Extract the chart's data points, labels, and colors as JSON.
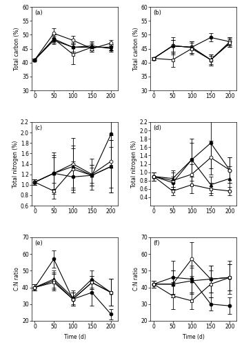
{
  "time": [
    0,
    50,
    100,
    150,
    200
  ],
  "panel_a": {
    "label": "(a)",
    "ylabel": "Total carbon (%)",
    "ylim": [
      30,
      60
    ],
    "yticks": [
      30,
      35,
      40,
      45,
      50,
      55,
      60
    ],
    "series": [
      {
        "y": [
          41,
          50.5,
          48,
          45,
          47
        ],
        "yerr": [
          0.3,
          1.8,
          1.5,
          1.2,
          1.0
        ],
        "marker": "o",
        "fill": false
      },
      {
        "y": [
          41,
          48.5,
          43,
          45.5,
          45.5
        ],
        "yerr": [
          0.3,
          1.5,
          3.5,
          1.2,
          1.0
        ],
        "marker": "s",
        "fill": false
      },
      {
        "y": [
          41,
          48.5,
          45.5,
          45.5,
          45.5
        ],
        "yerr": [
          0.3,
          1.5,
          1.5,
          1.5,
          1.0
        ],
        "marker": "o",
        "fill": true
      },
      {
        "y": [
          41,
          48,
          45.5,
          46,
          45
        ],
        "yerr": [
          0.3,
          1.5,
          1.5,
          1.5,
          1.0
        ],
        "marker": "^",
        "fill": true
      }
    ]
  },
  "panel_b": {
    "label": "(b)",
    "ylabel": "Total carbon (%)",
    "ylim": [
      30,
      60
    ],
    "yticks": [
      30,
      35,
      40,
      45,
      50,
      55,
      60
    ],
    "series": [
      {
        "y": [
          41.5,
          46,
          45.5,
          49,
          47.5
        ],
        "yerr": [
          0.5,
          2.0,
          2.0,
          1.5,
          1.5
        ],
        "marker": "o",
        "fill": true
      },
      {
        "y": [
          41.5,
          46,
          45.5,
          41,
          47.5
        ],
        "yerr": [
          0.5,
          2.0,
          2.0,
          1.5,
          1.5
        ],
        "marker": "o",
        "fill": false
      },
      {
        "y": [
          41.5,
          46,
          45.5,
          41,
          47
        ],
        "yerr": [
          0.5,
          3.0,
          2.0,
          2.0,
          1.5
        ],
        "marker": "^",
        "fill": true
      },
      {
        "y": [
          41.5,
          41,
          45,
          41,
          47
        ],
        "yerr": [
          0.5,
          2.5,
          2.0,
          2.0,
          1.5
        ],
        "marker": "s",
        "fill": false
      }
    ]
  },
  "panel_c": {
    "label": "(c)",
    "ylabel": "Total nitrogen (%)",
    "ylim": [
      0.6,
      2.2
    ],
    "yticks": [
      0.6,
      0.8,
      1.0,
      1.2,
      1.4,
      1.6,
      1.8,
      2.0,
      2.2
    ],
    "series": [
      {
        "y": [
          1.05,
          1.22,
          1.4,
          1.2,
          1.45
        ],
        "yerr": [
          0.05,
          0.4,
          0.5,
          0.3,
          0.5
        ],
        "marker": "o",
        "fill": false
      },
      {
        "y": [
          1.05,
          1.22,
          1.15,
          1.18,
          1.97
        ],
        "yerr": [
          0.05,
          0.35,
          0.3,
          0.15,
          0.25
        ],
        "marker": "o",
        "fill": true
      },
      {
        "y": [
          1.05,
          0.88,
          1.3,
          1.18,
          1.35
        ],
        "yerr": [
          0.05,
          0.15,
          0.4,
          0.2,
          0.5
        ],
        "marker": "s",
        "fill": false
      },
      {
        "y": [
          1.05,
          1.22,
          1.35,
          1.18,
          1.35
        ],
        "yerr": [
          0.05,
          0.3,
          0.4,
          0.2,
          0.5
        ],
        "marker": "^",
        "fill": true
      }
    ]
  },
  "panel_d": {
    "label": "(d)",
    "ylabel": "Total nitrogen (%)",
    "ylim": [
      0.2,
      2.2
    ],
    "yticks": [
      0.4,
      0.6,
      0.8,
      1.0,
      1.2,
      1.4,
      1.6,
      1.8,
      2.0,
      2.2
    ],
    "series": [
      {
        "y": [
          0.9,
          0.75,
          1.3,
          1.7,
          1.05
        ],
        "yerr": [
          0.1,
          0.15,
          0.5,
          0.6,
          0.3
        ],
        "marker": "o",
        "fill": true
      },
      {
        "y": [
          0.9,
          0.8,
          0.95,
          1.35,
          1.05
        ],
        "yerr": [
          0.1,
          0.2,
          0.25,
          0.4,
          0.3
        ],
        "marker": "o",
        "fill": false
      },
      {
        "y": [
          0.9,
          0.85,
          1.3,
          0.7,
          0.85
        ],
        "yerr": [
          0.1,
          0.2,
          0.4,
          0.2,
          0.3
        ],
        "marker": "^",
        "fill": true
      },
      {
        "y": [
          0.9,
          0.55,
          0.7,
          0.6,
          0.55
        ],
        "yerr": [
          0.1,
          0.1,
          0.2,
          0.15,
          0.1
        ],
        "marker": "s",
        "fill": false
      }
    ]
  },
  "panel_e": {
    "label": "(e)",
    "ylabel": "C:N ratio",
    "xlabel": "Time (d)",
    "ylim": [
      20,
      70
    ],
    "yticks": [
      20,
      30,
      40,
      50,
      60,
      70
    ],
    "series": [
      {
        "y": [
          40,
          57,
          33,
          37,
          24
        ],
        "yerr": [
          2,
          5,
          4,
          8,
          3
        ],
        "marker": "o",
        "fill": true
      },
      {
        "y": [
          40,
          45,
          34,
          45,
          37
        ],
        "yerr": [
          2,
          5,
          4,
          5,
          8
        ],
        "marker": "^",
        "fill": true
      },
      {
        "y": [
          40,
          44,
          33,
          43,
          37
        ],
        "yerr": [
          2,
          5,
          4,
          4,
          8
        ],
        "marker": "o",
        "fill": false
      },
      {
        "y": [
          40,
          43,
          33,
          43,
          37
        ],
        "yerr": [
          2,
          5,
          4,
          4,
          8
        ],
        "marker": "s",
        "fill": false
      }
    ]
  },
  "panel_f": {
    "label": "(f)",
    "ylabel": "C:N ratio",
    "xlabel": "Time (d)",
    "ylim": [
      20,
      70
    ],
    "yticks": [
      20,
      30,
      40,
      50,
      60,
      70
    ],
    "series": [
      {
        "y": [
          42,
          42,
          57,
          45,
          46
        ],
        "yerr": [
          2,
          8,
          10,
          8,
          8
        ],
        "marker": "o",
        "fill": false
      },
      {
        "y": [
          42,
          46,
          45,
          30,
          29
        ],
        "yerr": [
          2,
          10,
          8,
          4,
          5
        ],
        "marker": "o",
        "fill": true
      },
      {
        "y": [
          42,
          42,
          44,
          45,
          46
        ],
        "yerr": [
          2,
          8,
          8,
          8,
          8
        ],
        "marker": "^",
        "fill": true
      },
      {
        "y": [
          42,
          35,
          32,
          42,
          46
        ],
        "yerr": [
          2,
          8,
          5,
          8,
          10
        ],
        "marker": "s",
        "fill": false
      }
    ]
  },
  "marker_size": 3.5,
  "capsize": 2,
  "linewidth": 0.8,
  "elinewidth": 0.6
}
